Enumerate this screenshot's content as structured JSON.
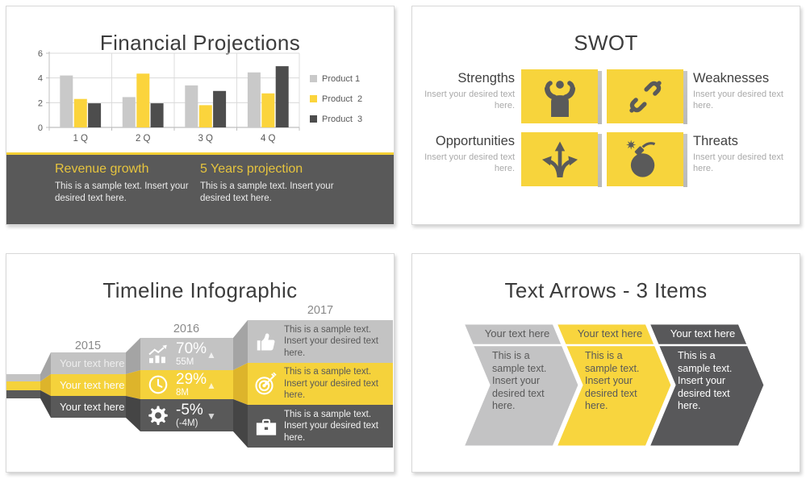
{
  "colors": {
    "accent_yellow": "#f7d43c",
    "dark_gray": "#595959",
    "light_gray": "#c3c3c3",
    "divider_yellow": "#f3ce33",
    "footer_heading_yellow": "#e6c43e",
    "title_text": "#3c3c3c"
  },
  "chart_data": {
    "type": "bar",
    "title": "Financial Projections",
    "categories": [
      "1 Q",
      "2 Q",
      "3 Q",
      "4 Q"
    ],
    "series": [
      {
        "name": "Product 1",
        "color": "#c9c9c9",
        "values": [
          4.2,
          2.45,
          3.4,
          4.45
        ]
      },
      {
        "name": "Product  2",
        "color": "#fbd43c",
        "values": [
          2.3,
          4.35,
          1.8,
          2.75
        ]
      },
      {
        "name": "Product  3",
        "color": "#4d4d4d",
        "values": [
          1.95,
          1.95,
          2.95,
          4.95
        ]
      }
    ],
    "xlabel": "",
    "ylabel": "",
    "ylim": [
      0,
      6
    ],
    "yticks": [
      0,
      2,
      4,
      6
    ],
    "grid": true,
    "legend_position": "right"
  },
  "financial": {
    "title": "Financial Projections",
    "footer": {
      "columns": [
        {
          "title": "Revenue growth",
          "text": "This is a sample text. Insert your desired text here."
        },
        {
          "title": "5 Years projection",
          "text": "This is a sample text. Insert your desired text here."
        }
      ]
    }
  },
  "swot": {
    "title": "SWOT",
    "quadrants": [
      {
        "label": "Strengths",
        "desc": "Insert your desired text here.",
        "icon": "muscle-icon",
        "side": "left"
      },
      {
        "label": "Weaknesses",
        "desc": "Insert your desired text here.",
        "icon": "broken-chain-icon",
        "side": "right"
      },
      {
        "label": "Opportunities",
        "desc": "Insert your desired text here.",
        "icon": "three-way-arrows-icon",
        "side": "left"
      },
      {
        "label": "Threats",
        "desc": "Insert your desired text here.",
        "icon": "bomb-icon",
        "side": "right"
      }
    ]
  },
  "timeline": {
    "title": "Timeline Infographic",
    "stages": [
      {
        "year": "2015",
        "rows": [
          {
            "text": "Your text here"
          },
          {
            "text": "Your text here"
          },
          {
            "text": "Your text here"
          }
        ]
      },
      {
        "year": "2016",
        "rows": [
          {
            "icon": "bar-chart-icon",
            "value": "70%",
            "sub": "55M",
            "trend": "up"
          },
          {
            "icon": "clock-icon",
            "value": "29%",
            "sub": "8M",
            "trend": "up"
          },
          {
            "icon": "gear-icon",
            "value": "-5%",
            "sub": "(-4M)",
            "trend": "down"
          }
        ]
      },
      {
        "year": "2017",
        "rows": [
          {
            "icon": "thumbs-up-icon",
            "text": "This is a sample text. Insert your desired text here."
          },
          {
            "icon": "target-icon",
            "text": "This is a sample text. Insert your desired text here."
          },
          {
            "icon": "briefcase-icon",
            "text": "This is a sample text. Insert your desired text here."
          }
        ]
      }
    ]
  },
  "arrows": {
    "title": "Text Arrows - 3 Items",
    "items": [
      {
        "header": "Your text here",
        "body": "This is a sample text. Insert your desired text here.",
        "fill": "#c3c3c4",
        "text_color": "#595959"
      },
      {
        "header": "Your text here",
        "body": "This is a sample text. Insert your desired text here.",
        "fill": "#f8d53e",
        "text_color": "#595959"
      },
      {
        "header": "Your text here",
        "body": "This is a sample text. Insert your desired text here.",
        "fill": "#58585a",
        "text_color": "#ffffff"
      }
    ]
  }
}
